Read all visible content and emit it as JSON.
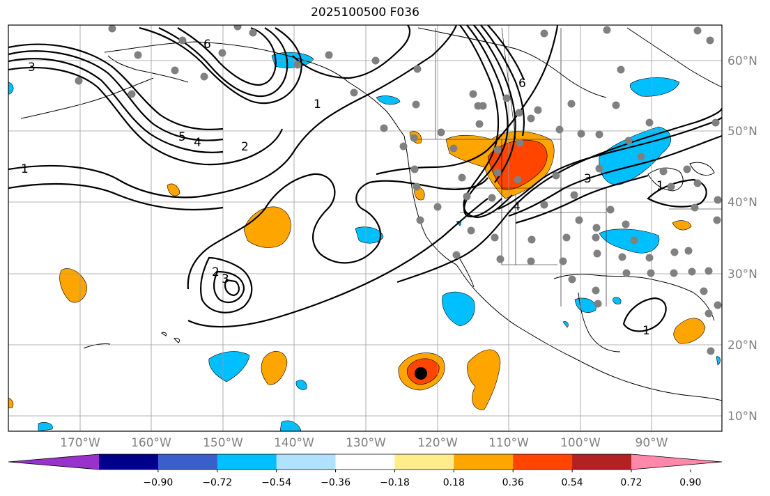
{
  "title": "2025100500 F036",
  "lon_labels": [
    "170°W",
    "160°W",
    "150°W",
    "140°W",
    "130°W",
    "120°W",
    "110°W",
    "100°W",
    "90°W"
  ],
  "lat_labels": [
    "60°N",
    "50°N",
    "40°N",
    "30°N",
    "20°N",
    "10°N"
  ],
  "colorbar": {
    "tick_labels": [
      "−0.90",
      "−0.72",
      "−0.54",
      "−0.36",
      "−0.18",
      "0.18",
      "0.36",
      "0.54",
      "0.72",
      "0.90"
    ],
    "colors": [
      "#9932cc",
      "#00008b",
      "#3a5fcd",
      "#00bfff",
      "#b0e2ff",
      "#ffffff",
      "#ffec8b",
      "#ffa500",
      "#ff4500",
      "#b22222",
      "#ff88aa"
    ]
  },
  "contour_labels": [
    "6",
    "3",
    "5",
    "4",
    "2",
    "1",
    "1",
    "6",
    "4",
    "3",
    "2",
    "3",
    "1",
    "1"
  ],
  "colors": {
    "positive": "#ffa500",
    "strong_positive": "#ff4500",
    "negative": "#00bfff",
    "station": "#808080",
    "land": "#000000"
  },
  "marker": "storm-center"
}
